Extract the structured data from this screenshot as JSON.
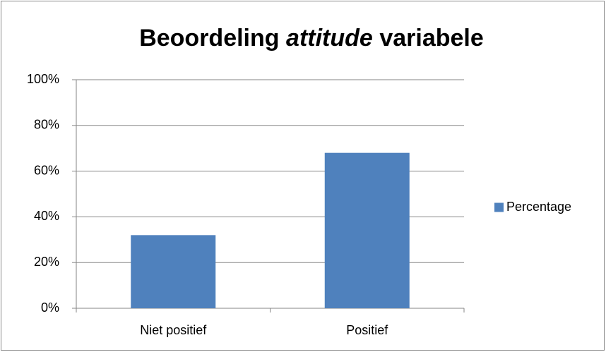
{
  "chart_data": {
    "type": "bar",
    "title": [
      "Beoordeling",
      "attitude",
      "variabele"
    ],
    "title_italic": [
      false,
      true,
      false
    ],
    "categories": [
      "Niet positief",
      "Positief"
    ],
    "series": [
      {
        "name": "Percentage",
        "color": "#4f81bd",
        "values": [
          32,
          68
        ]
      }
    ],
    "ylim": [
      0,
      100
    ],
    "yticks": [
      {
        "value": 0,
        "label": "0%"
      },
      {
        "value": 20,
        "label": "20%"
      },
      {
        "value": 40,
        "label": "40%"
      },
      {
        "value": 60,
        "label": "60%"
      },
      {
        "value": 80,
        "label": "80%"
      },
      {
        "value": 100,
        "label": "100%"
      }
    ],
    "grid": true,
    "legend": "right"
  }
}
